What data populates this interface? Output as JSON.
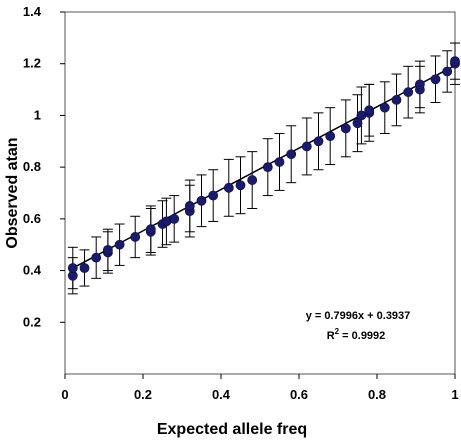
{
  "chart_data": {
    "type": "scatter",
    "title": "",
    "xlabel": "Expected allele freq",
    "ylabel": "Observed atan",
    "xlim": [
      0,
      1
    ],
    "ylim": [
      0,
      1.4
    ],
    "x_ticks": [
      "0",
      "0.2",
      "0.4",
      "0.6",
      "0.8",
      "1"
    ],
    "y_ticks": [
      "0.2",
      "0.4",
      "0.6",
      "0.8",
      "1",
      "1.2",
      "1.4"
    ],
    "y_tick_values": [
      0.2,
      0.4,
      0.6,
      0.8,
      1.0,
      1.2,
      1.4
    ],
    "x_tick_values": [
      0,
      0.2,
      0.4,
      0.6,
      0.8,
      1.0
    ],
    "grid": false,
    "marker_color": "#1a1a6e",
    "line_color": "#000000",
    "error_bar_color": "#000000",
    "series": [
      {
        "x": [
          0.02,
          0.02,
          0.05,
          0.08,
          0.11,
          0.11,
          0.14,
          0.18,
          0.22,
          0.22,
          0.25,
          0.26,
          0.28,
          0.32,
          0.32,
          0.35,
          0.38,
          0.42,
          0.45,
          0.48,
          0.52,
          0.55,
          0.58,
          0.62,
          0.65,
          0.68,
          0.72,
          0.75,
          0.76,
          0.78,
          0.78,
          0.82,
          0.85,
          0.88,
          0.91,
          0.91,
          0.95,
          0.98,
          1.0,
          1.0
        ],
        "y": [
          0.38,
          0.41,
          0.41,
          0.45,
          0.47,
          0.48,
          0.5,
          0.53,
          0.55,
          0.56,
          0.58,
          0.59,
          0.6,
          0.63,
          0.65,
          0.67,
          0.69,
          0.72,
          0.73,
          0.75,
          0.8,
          0.82,
          0.85,
          0.88,
          0.9,
          0.92,
          0.95,
          0.97,
          1.0,
          1.01,
          1.02,
          1.03,
          1.06,
          1.09,
          1.1,
          1.12,
          1.14,
          1.17,
          1.2,
          1.21
        ],
        "err": [
          0.07,
          0.08,
          0.07,
          0.08,
          0.08,
          0.08,
          0.08,
          0.08,
          0.09,
          0.09,
          0.09,
          0.09,
          0.09,
          0.1,
          0.1,
          0.1,
          0.1,
          0.11,
          0.11,
          0.11,
          0.11,
          0.11,
          0.11,
          0.11,
          0.11,
          0.11,
          0.11,
          0.11,
          0.11,
          0.11,
          0.1,
          0.1,
          0.1,
          0.1,
          0.09,
          0.09,
          0.09,
          0.08,
          0.08,
          0.07
        ]
      }
    ],
    "trendline": {
      "slope": 0.7996,
      "intercept": 0.3937
    },
    "annotations": {
      "equation": "y = 0.7996x + 0.3937",
      "r2_prefix": "R",
      "r2_sup": "2",
      "r2_value": " = 0.9992"
    }
  }
}
